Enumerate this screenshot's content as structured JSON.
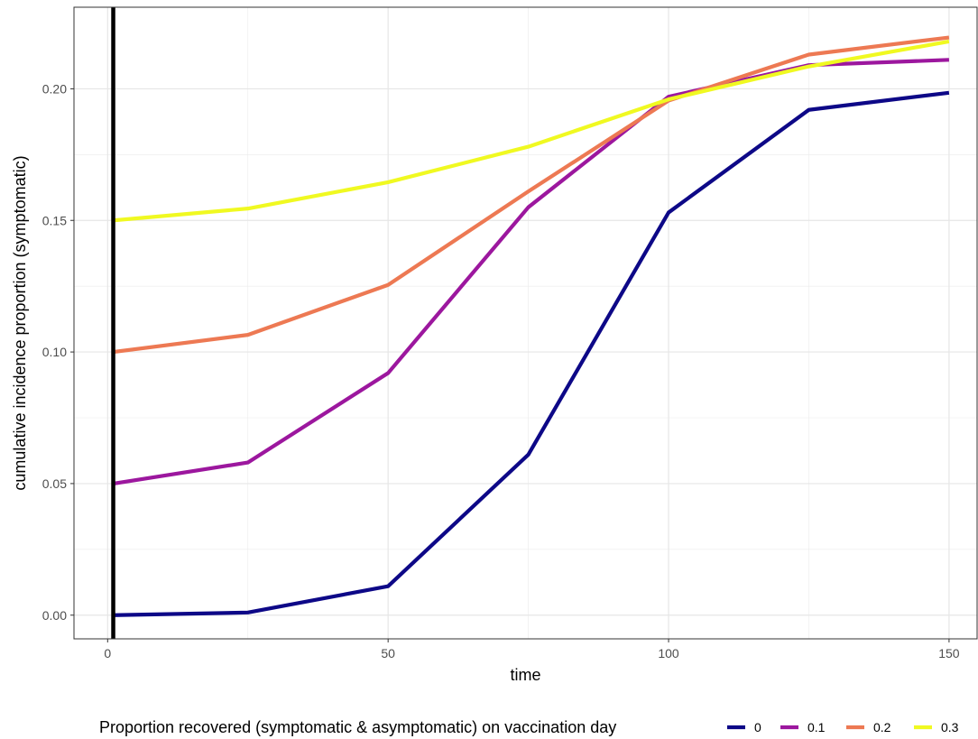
{
  "chart_data": {
    "type": "line",
    "xlabel": "time",
    "ylabel": "cumulative incidence proportion (symptomatic)",
    "xlim": [
      -6,
      155
    ],
    "ylim": [
      -0.009,
      0.231
    ],
    "x_ticks": [
      "0",
      "50",
      "100",
      "150"
    ],
    "x_tick_values": [
      0,
      50,
      100,
      150
    ],
    "y_ticks": [
      "0.00",
      "0.05",
      "0.10",
      "0.15",
      "0.20"
    ],
    "y_tick_values": [
      0,
      0.05,
      0.1,
      0.15,
      0.2
    ],
    "grid": true,
    "vline_x": 1,
    "vline_color": "#000000",
    "legend": {
      "title": "Proportion recovered (symptomatic & asymptomatic) on vaccination day",
      "position": "bottom"
    },
    "x": [
      1,
      25,
      50,
      75,
      100,
      125,
      150
    ],
    "series": [
      {
        "name": "0",
        "color": "#0d0887",
        "values": [
          0.0,
          0.001,
          0.011,
          0.061,
          0.153,
          0.192,
          0.1985
        ]
      },
      {
        "name": "0.1",
        "color": "#9c179e",
        "values": [
          0.05,
          0.058,
          0.092,
          0.155,
          0.197,
          0.209,
          0.211
        ]
      },
      {
        "name": "0.2",
        "color": "#ed7953",
        "values": [
          0.1,
          0.1065,
          0.1255,
          0.161,
          0.1955,
          0.213,
          0.2195
        ]
      },
      {
        "name": "0.3",
        "color": "#f0f921",
        "values": [
          0.15,
          0.1545,
          0.1645,
          0.178,
          0.196,
          0.2085,
          0.218
        ]
      }
    ]
  }
}
